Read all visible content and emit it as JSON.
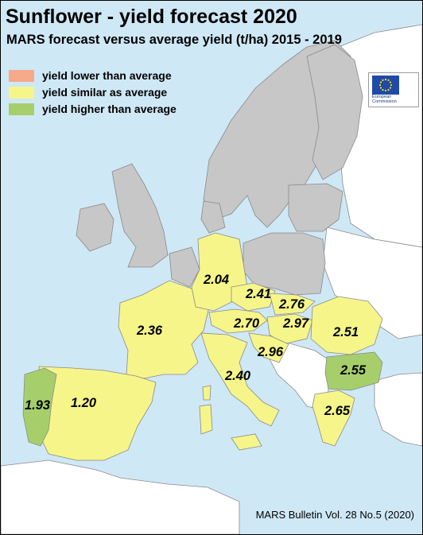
{
  "title": "Sunflower - yield forecast 2020",
  "subtitle": "MARS forecast versus average yield (t/ha) 2015 - 2019",
  "legend": [
    {
      "label": "yield lower than average",
      "color": "#f7a98a"
    },
    {
      "label": "yield similar as average",
      "color": "#f6f58a"
    },
    {
      "label": "yield higher than average",
      "color": "#a6cf6b"
    }
  ],
  "colors": {
    "sea": "#cfe8f6",
    "no_data": "#c7c7c7",
    "non_eu": "#ffffff",
    "border": "#8a8a8a"
  },
  "logo": {
    "line1": "European",
    "line2": "Commission"
  },
  "regions": [
    {
      "country": "Germany",
      "value": "2.04",
      "category": "similar"
    },
    {
      "country": "Czechia",
      "value": "2.41",
      "category": "similar"
    },
    {
      "country": "Slovakia",
      "value": "2.76",
      "category": "similar"
    },
    {
      "country": "France",
      "value": "2.36",
      "category": "similar"
    },
    {
      "country": "Austria",
      "value": "2.70",
      "category": "similar"
    },
    {
      "country": "Hungary",
      "value": "2.97",
      "category": "similar"
    },
    {
      "country": "Romania",
      "value": "2.51",
      "category": "similar"
    },
    {
      "country": "Croatia",
      "value": "2.96",
      "category": "similar"
    },
    {
      "country": "Bulgaria",
      "value": "2.55",
      "category": "higher"
    },
    {
      "country": "Italy",
      "value": "2.40",
      "category": "similar"
    },
    {
      "country": "Portugal",
      "value": "1.93",
      "category": "higher"
    },
    {
      "country": "Spain",
      "value": "1.20",
      "category": "similar"
    },
    {
      "country": "Greece",
      "value": "2.65",
      "category": "similar"
    }
  ],
  "footer": "MARS Bulletin Vol. 28 No.5 (2020)"
}
